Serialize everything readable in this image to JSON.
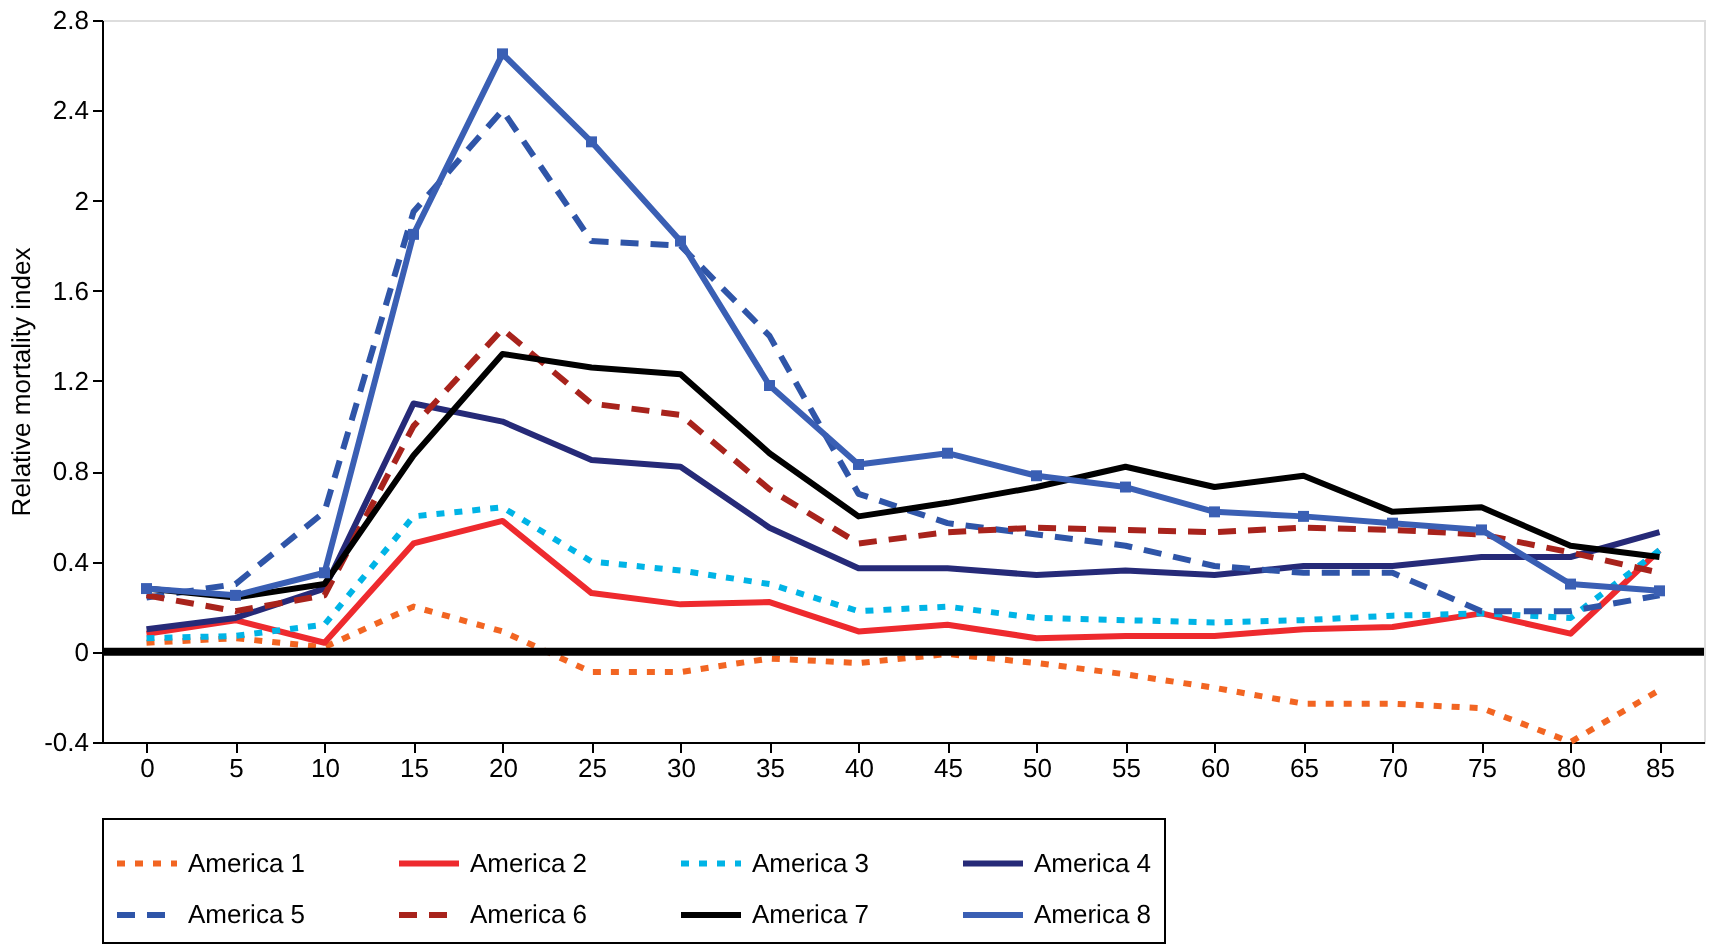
{
  "chart_data": {
    "type": "line",
    "ylabel": "Relative mortality index",
    "categories": [
      "0",
      "5",
      "10",
      "15",
      "20",
      "25",
      "30",
      "35",
      "40",
      "45",
      "50",
      "55",
      "60",
      "65",
      "70",
      "75",
      "80",
      "85"
    ],
    "series": [
      {
        "name": "America 1",
        "color": "#f26522",
        "line_style": "dotted",
        "values": [
          0.04,
          0.06,
          0.02,
          0.2,
          0.09,
          -0.09,
          -0.09,
          -0.03,
          -0.05,
          -0.01,
          -0.05,
          -0.1,
          -0.16,
          -0.23,
          -0.23,
          -0.25,
          -0.4,
          -0.17
        ]
      },
      {
        "name": "America 2",
        "color": "#ee2a2e",
        "line_style": "solid",
        "values": [
          0.08,
          0.14,
          0.04,
          0.48,
          0.58,
          0.26,
          0.21,
          0.22,
          0.09,
          0.12,
          0.06,
          0.07,
          0.07,
          0.1,
          0.11,
          0.17,
          0.08,
          0.45
        ]
      },
      {
        "name": "America 3",
        "color": "#00b4e6",
        "line_style": "dotted",
        "values": [
          0.06,
          0.07,
          0.12,
          0.6,
          0.64,
          0.4,
          0.36,
          0.3,
          0.18,
          0.2,
          0.15,
          0.14,
          0.13,
          0.14,
          0.16,
          0.17,
          0.15,
          0.45
        ]
      },
      {
        "name": "America 4",
        "color": "#262a78",
        "line_style": "solid",
        "values": [
          0.1,
          0.15,
          0.28,
          1.1,
          1.02,
          0.85,
          0.82,
          0.55,
          0.37,
          0.37,
          0.34,
          0.36,
          0.34,
          0.38,
          0.38,
          0.42,
          0.42,
          0.53
        ]
      },
      {
        "name": "America 5",
        "color": "#2f55a8",
        "line_style": "dashed",
        "values": [
          0.24,
          0.3,
          0.62,
          1.95,
          2.4,
          1.82,
          1.8,
          1.4,
          0.7,
          0.57,
          0.52,
          0.47,
          0.38,
          0.35,
          0.35,
          0.18,
          0.18,
          0.25
        ]
      },
      {
        "name": "America 6",
        "color": "#a8231c",
        "line_style": "dashed",
        "values": [
          0.25,
          0.18,
          0.25,
          1.0,
          1.43,
          1.1,
          1.05,
          0.72,
          0.48,
          0.53,
          0.55,
          0.54,
          0.53,
          0.55,
          0.54,
          0.52,
          0.44,
          0.35
        ]
      },
      {
        "name": "America 7",
        "color": "#000000",
        "line_style": "solid",
        "values": [
          0.28,
          0.24,
          0.3,
          0.87,
          1.32,
          1.26,
          1.23,
          0.88,
          0.6,
          0.66,
          0.73,
          0.82,
          0.73,
          0.78,
          0.62,
          0.64,
          0.47,
          0.42
        ]
      },
      {
        "name": "America 8",
        "color": "#3a5fb4",
        "line_style": "solid",
        "marker": "square",
        "values": [
          0.28,
          0.25,
          0.35,
          1.85,
          2.65,
          2.26,
          1.82,
          1.18,
          0.83,
          0.88,
          0.78,
          0.73,
          0.62,
          0.6,
          0.57,
          0.54,
          0.3,
          0.27
        ]
      }
    ],
    "ylim": [
      -0.4,
      2.8
    ],
    "yticks": [
      -0.4,
      0,
      0.4,
      0.8,
      1.2,
      1.6,
      2,
      2.4,
      2.8
    ],
    "ref_lines": [
      {
        "axis": "y",
        "value": 0,
        "color": "#000000",
        "line_style": "solid"
      }
    ],
    "grid": false,
    "legend": "bottom"
  }
}
